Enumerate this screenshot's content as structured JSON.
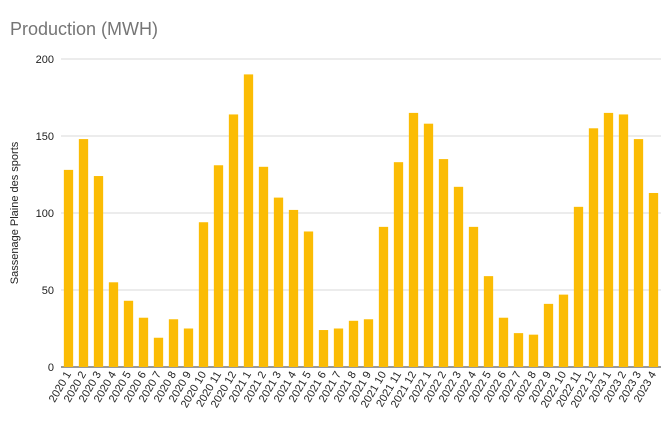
{
  "chart_data": {
    "type": "bar",
    "title": "Production (MWH)",
    "xlabel": "",
    "ylabel": "Sassenage Plaine des sports",
    "ylim": [
      0,
      200
    ],
    "yticks": [
      0,
      50,
      100,
      150,
      200
    ],
    "grid": true,
    "legend": "none",
    "bar_color": "#FBBC04",
    "categories": [
      "2020 1",
      "2020 2",
      "2020 3",
      "2020 4",
      "2020 5",
      "2020 6",
      "2020 7",
      "2020 8",
      "2020 9",
      "2020 10",
      "2020 11",
      "2020 12",
      "2021 1",
      "2021 2",
      "2021 3",
      "2021 4",
      "2021 5",
      "2021 6",
      "2021 7",
      "2021 8",
      "2021 9",
      "2021 10",
      "2021 11",
      "2021 12",
      "2022 1",
      "2022 2",
      "2022 3",
      "2022 4",
      "2022 5",
      "2022 6",
      "2022 7",
      "2022 8",
      "2022 9",
      "2022 10",
      "2022 11",
      "2022 12",
      "2023 1",
      "2023 2",
      "2023 3",
      "2023 4"
    ],
    "values": [
      128,
      148,
      124,
      55,
      43,
      32,
      19,
      31,
      25,
      94,
      131,
      164,
      190,
      130,
      110,
      102,
      88,
      24,
      25,
      30,
      31,
      91,
      133,
      165,
      158,
      135,
      117,
      91,
      59,
      32,
      22,
      21,
      41,
      47,
      104,
      155,
      165,
      164,
      148,
      113
    ]
  }
}
